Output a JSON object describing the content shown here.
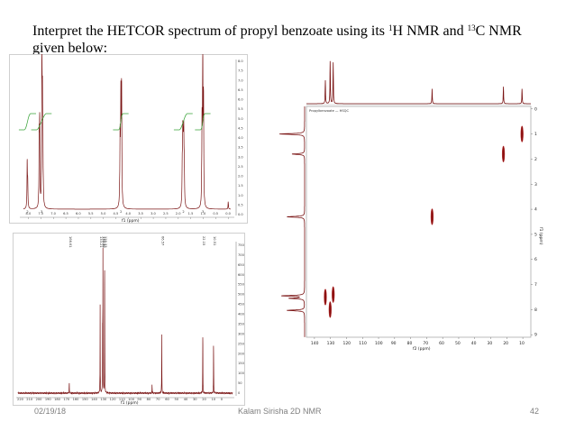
{
  "slide": {
    "title_pre": "Interpret the HETCOR spectrum of propyl benzoate using its ",
    "title_sup1": "1",
    "title_mid": "H NMR and ",
    "title_sup2": "13",
    "title_post": "C NMR",
    "title_line2": "given below:",
    "footer_date": "02/19/18",
    "footer_author": "Kalam Sirisha   2D NMR",
    "footer_page": "42"
  },
  "h1_spectrum": {
    "x_axis_label": "f1 (ppm)",
    "x_ticks": [
      "8.0",
      "7.5",
      "7.0",
      "6.5",
      "6.0",
      "5.5",
      "5.0",
      "4.5",
      "4.0",
      "3.5",
      "3.0",
      "2.5",
      "2.0",
      "1.5",
      "1.0",
      "0.5",
      "0.0"
    ],
    "y_ticks": [
      "8.0",
      "7.5",
      "7.0",
      "6.5",
      "6.0",
      "5.5",
      "5.0",
      "4.5",
      "4.0",
      "3.5",
      "3.0",
      "2.5",
      "2.0",
      "1.5",
      "1.0",
      "0.5",
      "0.0"
    ],
    "integrals": [
      "2",
      "3",
      "2",
      "2",
      "3"
    ]
  },
  "c13_spectrum": {
    "x_axis_label": "f1 (ppm)",
    "x_ticks": [
      "220",
      "210",
      "200",
      "190",
      "180",
      "170",
      "160",
      "150",
      "140",
      "130",
      "120",
      "110",
      "100",
      "90",
      "80",
      "70",
      "60",
      "50",
      "40",
      "30",
      "20",
      "10",
      "0"
    ],
    "y_ticks": [
      "750",
      "700",
      "650",
      "600",
      "550",
      "500",
      "450",
      "400",
      "350",
      "300",
      "250",
      "200",
      "150",
      "100",
      "50",
      "0"
    ],
    "peak_labels": [
      "166.61",
      "133.21",
      "130.52",
      "130.20",
      "128.33",
      "66.57",
      "22.15",
      "10.51"
    ]
  },
  "hetcor": {
    "panel_title": "Propylbenzoate — HSQC",
    "x_axis_label": "f2 (ppm)",
    "y_axis_label": "f1 (ppm)",
    "x_ticks": [
      "140",
      "130",
      "120",
      "110",
      "100",
      "90",
      "80",
      "70",
      "60",
      "50",
      "40",
      "30",
      "20",
      "10"
    ],
    "y_ticks": [
      "0",
      "1",
      "2",
      "3",
      "4",
      "5",
      "6",
      "7",
      "8",
      "9"
    ],
    "cross_peaks": [
      {
        "c_ppm": 10.5,
        "h_ppm": 1.0
      },
      {
        "c_ppm": 22.1,
        "h_ppm": 1.8
      },
      {
        "c_ppm": 66.6,
        "h_ppm": 4.3
      },
      {
        "c_ppm": 128.3,
        "h_ppm": 7.4
      },
      {
        "c_ppm": 130.2,
        "h_ppm": 8.0
      },
      {
        "c_ppm": 133.2,
        "h_ppm": 7.5
      }
    ]
  },
  "colors": {
    "spectrum": "#7a1414",
    "axis": "#333333",
    "grid_frame": "#999999"
  }
}
